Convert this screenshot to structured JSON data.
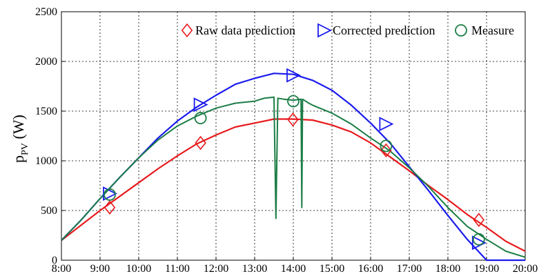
{
  "chart_data": {
    "type": "line",
    "title": "",
    "xlabel": "",
    "ylabel_main": "p",
    "ylabel_sub": "PV",
    "ylabel_unit": " (W)",
    "xlim": [
      8,
      20
    ],
    "ylim": [
      0,
      2500
    ],
    "grid": true,
    "legend_position": "top-right",
    "x_tick_labels": [
      "8:00",
      "9:00",
      "10:00",
      "11:00",
      "12:00",
      "13:00",
      "14:00",
      "15:00",
      "16:00",
      "17:00",
      "18:00",
      "19:00",
      "20:00"
    ],
    "x_ticks": [
      8,
      9,
      10,
      11,
      12,
      13,
      14,
      15,
      16,
      17,
      18,
      19,
      20
    ],
    "y_tick_labels": [
      "0",
      "500",
      "1000",
      "1500",
      "2000",
      "2500"
    ],
    "y_ticks": [
      0,
      500,
      1000,
      1500,
      2000,
      2500
    ],
    "series": [
      {
        "name": "Raw data prediction",
        "color": "#e8191c",
        "marker": "diamond",
        "x": [
          8,
          8.5,
          9,
          9.5,
          10,
          10.5,
          11,
          11.5,
          12,
          12.5,
          13,
          13.5,
          14,
          14.5,
          15,
          15.5,
          16,
          16.5,
          17,
          17.5,
          18,
          18.5,
          19,
          19.5,
          20
        ],
        "y": [
          200,
          350,
          500,
          640,
          780,
          920,
          1050,
          1170,
          1260,
          1340,
          1380,
          1420,
          1420,
          1410,
          1360,
          1290,
          1180,
          1040,
          900,
          750,
          610,
          460,
          330,
          190,
          90
        ],
        "marker_x": [
          9.25,
          11.6,
          13.99,
          16.4,
          18.8
        ],
        "marker_y": [
          530,
          1180,
          1415,
          1105,
          405
        ]
      },
      {
        "name": "Corrected prediction",
        "color": "#1a1aee",
        "marker": "triangle-right",
        "x": [
          8,
          8.5,
          9,
          9.5,
          10,
          10.5,
          11,
          11.5,
          12,
          12.5,
          13,
          13.5,
          14,
          14.5,
          15,
          15.5,
          16,
          16.5,
          17,
          17.5,
          18,
          18.5,
          19,
          19.5,
          20
        ],
        "y": [
          200,
          400,
          620,
          830,
          1030,
          1230,
          1400,
          1540,
          1660,
          1770,
          1830,
          1880,
          1870,
          1810,
          1710,
          1560,
          1380,
          1180,
          940,
          700,
          450,
          210,
          0,
          0,
          0
        ],
        "marker_x": [
          9.25,
          11.6,
          14.0,
          16.4,
          18.8
        ],
        "marker_y": [
          670,
          1565,
          1860,
          1370,
          175
        ]
      },
      {
        "name": "Measure",
        "color": "#1b7d45",
        "marker": "circle",
        "x": [
          8,
          8.5,
          9,
          9.5,
          10,
          10.5,
          11,
          11.5,
          12,
          12.5,
          13,
          13.25,
          13.5,
          13.55,
          13.6,
          13.75,
          14,
          14.2,
          14.22,
          14.24,
          14.4,
          14.5,
          15,
          15.5,
          16,
          16.5,
          17,
          17.5,
          18,
          18.5,
          19,
          19.5,
          20
        ],
        "y": [
          200,
          400,
          620,
          830,
          1030,
          1210,
          1350,
          1450,
          1530,
          1580,
          1600,
          1630,
          1640,
          420,
          1630,
          1620,
          1610,
          1620,
          530,
          1620,
          1580,
          1560,
          1480,
          1370,
          1230,
          1100,
          930,
          740,
          530,
          340,
          210,
          90,
          30
        ],
        "marker_x": [
          9.25,
          11.6,
          14.0,
          16.4,
          18.8
        ],
        "marker_y": [
          660,
          1430,
          1600,
          1150,
          210
        ]
      }
    ]
  }
}
